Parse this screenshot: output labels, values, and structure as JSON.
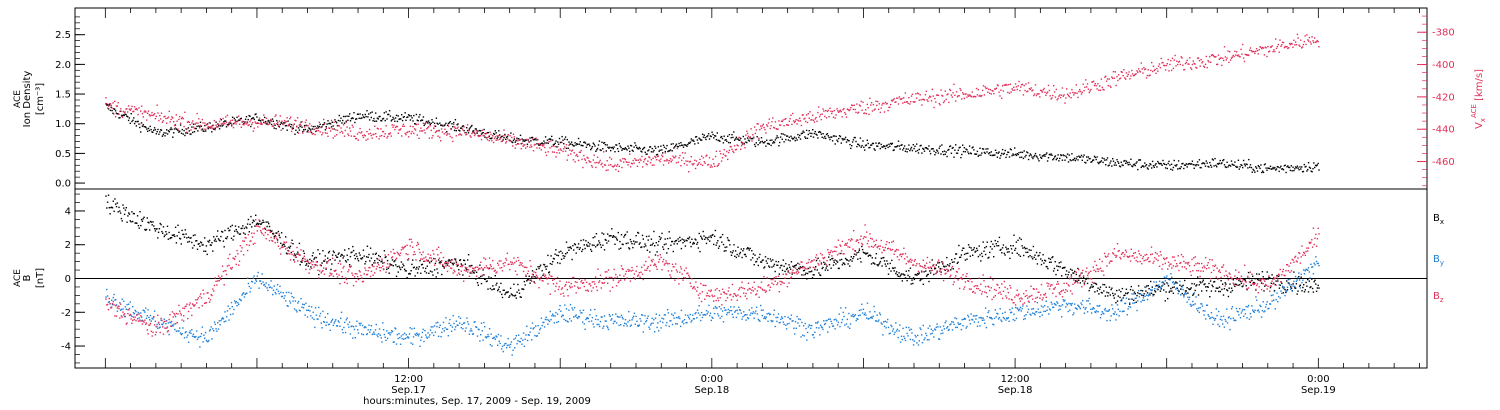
{
  "chart_data": [
    {
      "type": "scatter",
      "panel": "top",
      "ylabel_lines": [
        "ACE",
        "Ion Density"
      ],
      "yunit": "[cm⁻³]",
      "ylim": [
        -0.1,
        2.95
      ],
      "yticks": [
        0.0,
        0.5,
        1.0,
        1.5,
        2.0,
        2.5
      ],
      "ytick_labels": [
        "0.0",
        "0.5",
        "1.0",
        "1.5",
        "2.0",
        "2.5"
      ],
      "right_axis": {
        "label": "V",
        "label_sub": "x",
        "label_sup": "ACE",
        "unit": "[km/s]",
        "ylim": [
          -477,
          -365
        ],
        "yticks": [
          -460,
          -440,
          -420,
          -400,
          -380
        ],
        "ytick_labels": [
          "-460",
          "-440",
          "-420",
          "-400",
          "-380"
        ],
        "color": "#e0305a"
      },
      "series": [
        {
          "color": "#000000",
          "axis": "left",
          "x": [
            0,
            2,
            4,
            6,
            8,
            10,
            12,
            14,
            16,
            18,
            20,
            22,
            24,
            26,
            28,
            30,
            32,
            34,
            36,
            38,
            40,
            42,
            44,
            46,
            48
          ],
          "y": [
            1.3,
            0.85,
            0.95,
            1.1,
            0.9,
            1.15,
            1.1,
            0.95,
            0.75,
            0.7,
            0.6,
            0.55,
            0.8,
            0.7,
            0.85,
            0.65,
            0.6,
            0.55,
            0.5,
            0.45,
            0.35,
            0.3,
            0.35,
            0.25,
            0.3
          ]
        },
        {
          "color": "#e0305a",
          "axis": "right",
          "x": [
            0,
            2,
            4,
            6,
            8,
            10,
            12,
            14,
            16,
            18,
            20,
            22,
            24,
            26,
            28,
            30,
            32,
            34,
            36,
            38,
            40,
            42,
            44,
            46,
            48
          ],
          "y": [
            -425,
            -432,
            -437,
            -435,
            -437,
            -442,
            -440,
            -441,
            -447,
            -453,
            -462,
            -458,
            -460,
            -438,
            -432,
            -426,
            -421,
            -418,
            -414,
            -418,
            -408,
            -400,
            -396,
            -390,
            -383
          ]
        }
      ]
    },
    {
      "type": "scatter",
      "panel": "bottom",
      "ylabel_lines": [
        "ACE",
        "B"
      ],
      "yunit": "[nT]",
      "ylim": [
        -5.3,
        5.3
      ],
      "yticks": [
        -4,
        -2,
        0,
        2,
        4
      ],
      "ytick_labels": [
        "-4",
        "-2",
        "0",
        "2",
        "4"
      ],
      "zero_line": true,
      "xlabel": "hours:minutes, Sep. 17, 2009 - Sep. 19, 2009",
      "xlim": [
        -1.2,
        52.3
      ],
      "xticks": [
        12,
        24,
        36,
        48
      ],
      "xtick_labels": [
        [
          "12:00",
          "Sep.17"
        ],
        [
          "0:00",
          "Sep.18"
        ],
        [
          "12:00",
          "Sep.18"
        ],
        [
          "0:00",
          "Sep.19"
        ]
      ],
      "series": [
        {
          "name": "B",
          "name_sub": "x",
          "color": "#000000",
          "x": [
            0,
            2,
            4,
            6,
            8,
            10,
            12,
            14,
            16,
            18,
            20,
            22,
            24,
            26,
            28,
            30,
            32,
            34,
            36,
            38,
            40,
            42,
            44,
            46,
            48
          ],
          "y": [
            4.5,
            3.0,
            2.0,
            3.5,
            1.0,
            1.5,
            0.5,
            1.0,
            -1.0,
            1.5,
            2.5,
            2.0,
            2.5,
            1.0,
            0.5,
            1.5,
            0.0,
            1.5,
            2.0,
            0.5,
            -1.0,
            -0.5,
            -0.5,
            0.0,
            -0.5
          ]
        },
        {
          "name": "B",
          "name_sub": "y",
          "color": "#1f7fd8",
          "x": [
            0,
            2,
            4,
            6,
            8,
            10,
            12,
            14,
            16,
            18,
            20,
            22,
            24,
            26,
            28,
            30,
            32,
            34,
            36,
            38,
            40,
            42,
            44,
            46,
            48
          ],
          "y": [
            -1.0,
            -2.5,
            -3.5,
            0.0,
            -2.0,
            -3.0,
            -3.5,
            -2.5,
            -4.0,
            -2.0,
            -2.5,
            -2.5,
            -2.0,
            -2.0,
            -3.0,
            -2.0,
            -3.5,
            -2.5,
            -2.0,
            -1.5,
            -2.0,
            0.0,
            -2.5,
            -1.5,
            1.0
          ]
        },
        {
          "name": "B",
          "name_sub": "z",
          "color": "#e0305a",
          "x": [
            0,
            2,
            4,
            6,
            8,
            10,
            12,
            14,
            16,
            18,
            20,
            22,
            24,
            26,
            28,
            30,
            32,
            34,
            36,
            38,
            40,
            42,
            44,
            46,
            48
          ],
          "y": [
            -1.5,
            -3.0,
            -1.0,
            3.0,
            1.0,
            0.0,
            2.0,
            0.5,
            1.0,
            -0.5,
            0.0,
            1.0,
            -1.0,
            -0.5,
            1.0,
            2.5,
            1.0,
            0.0,
            -1.0,
            -0.5,
            1.5,
            1.0,
            0.5,
            -0.5,
            2.5
          ]
        }
      ]
    }
  ]
}
